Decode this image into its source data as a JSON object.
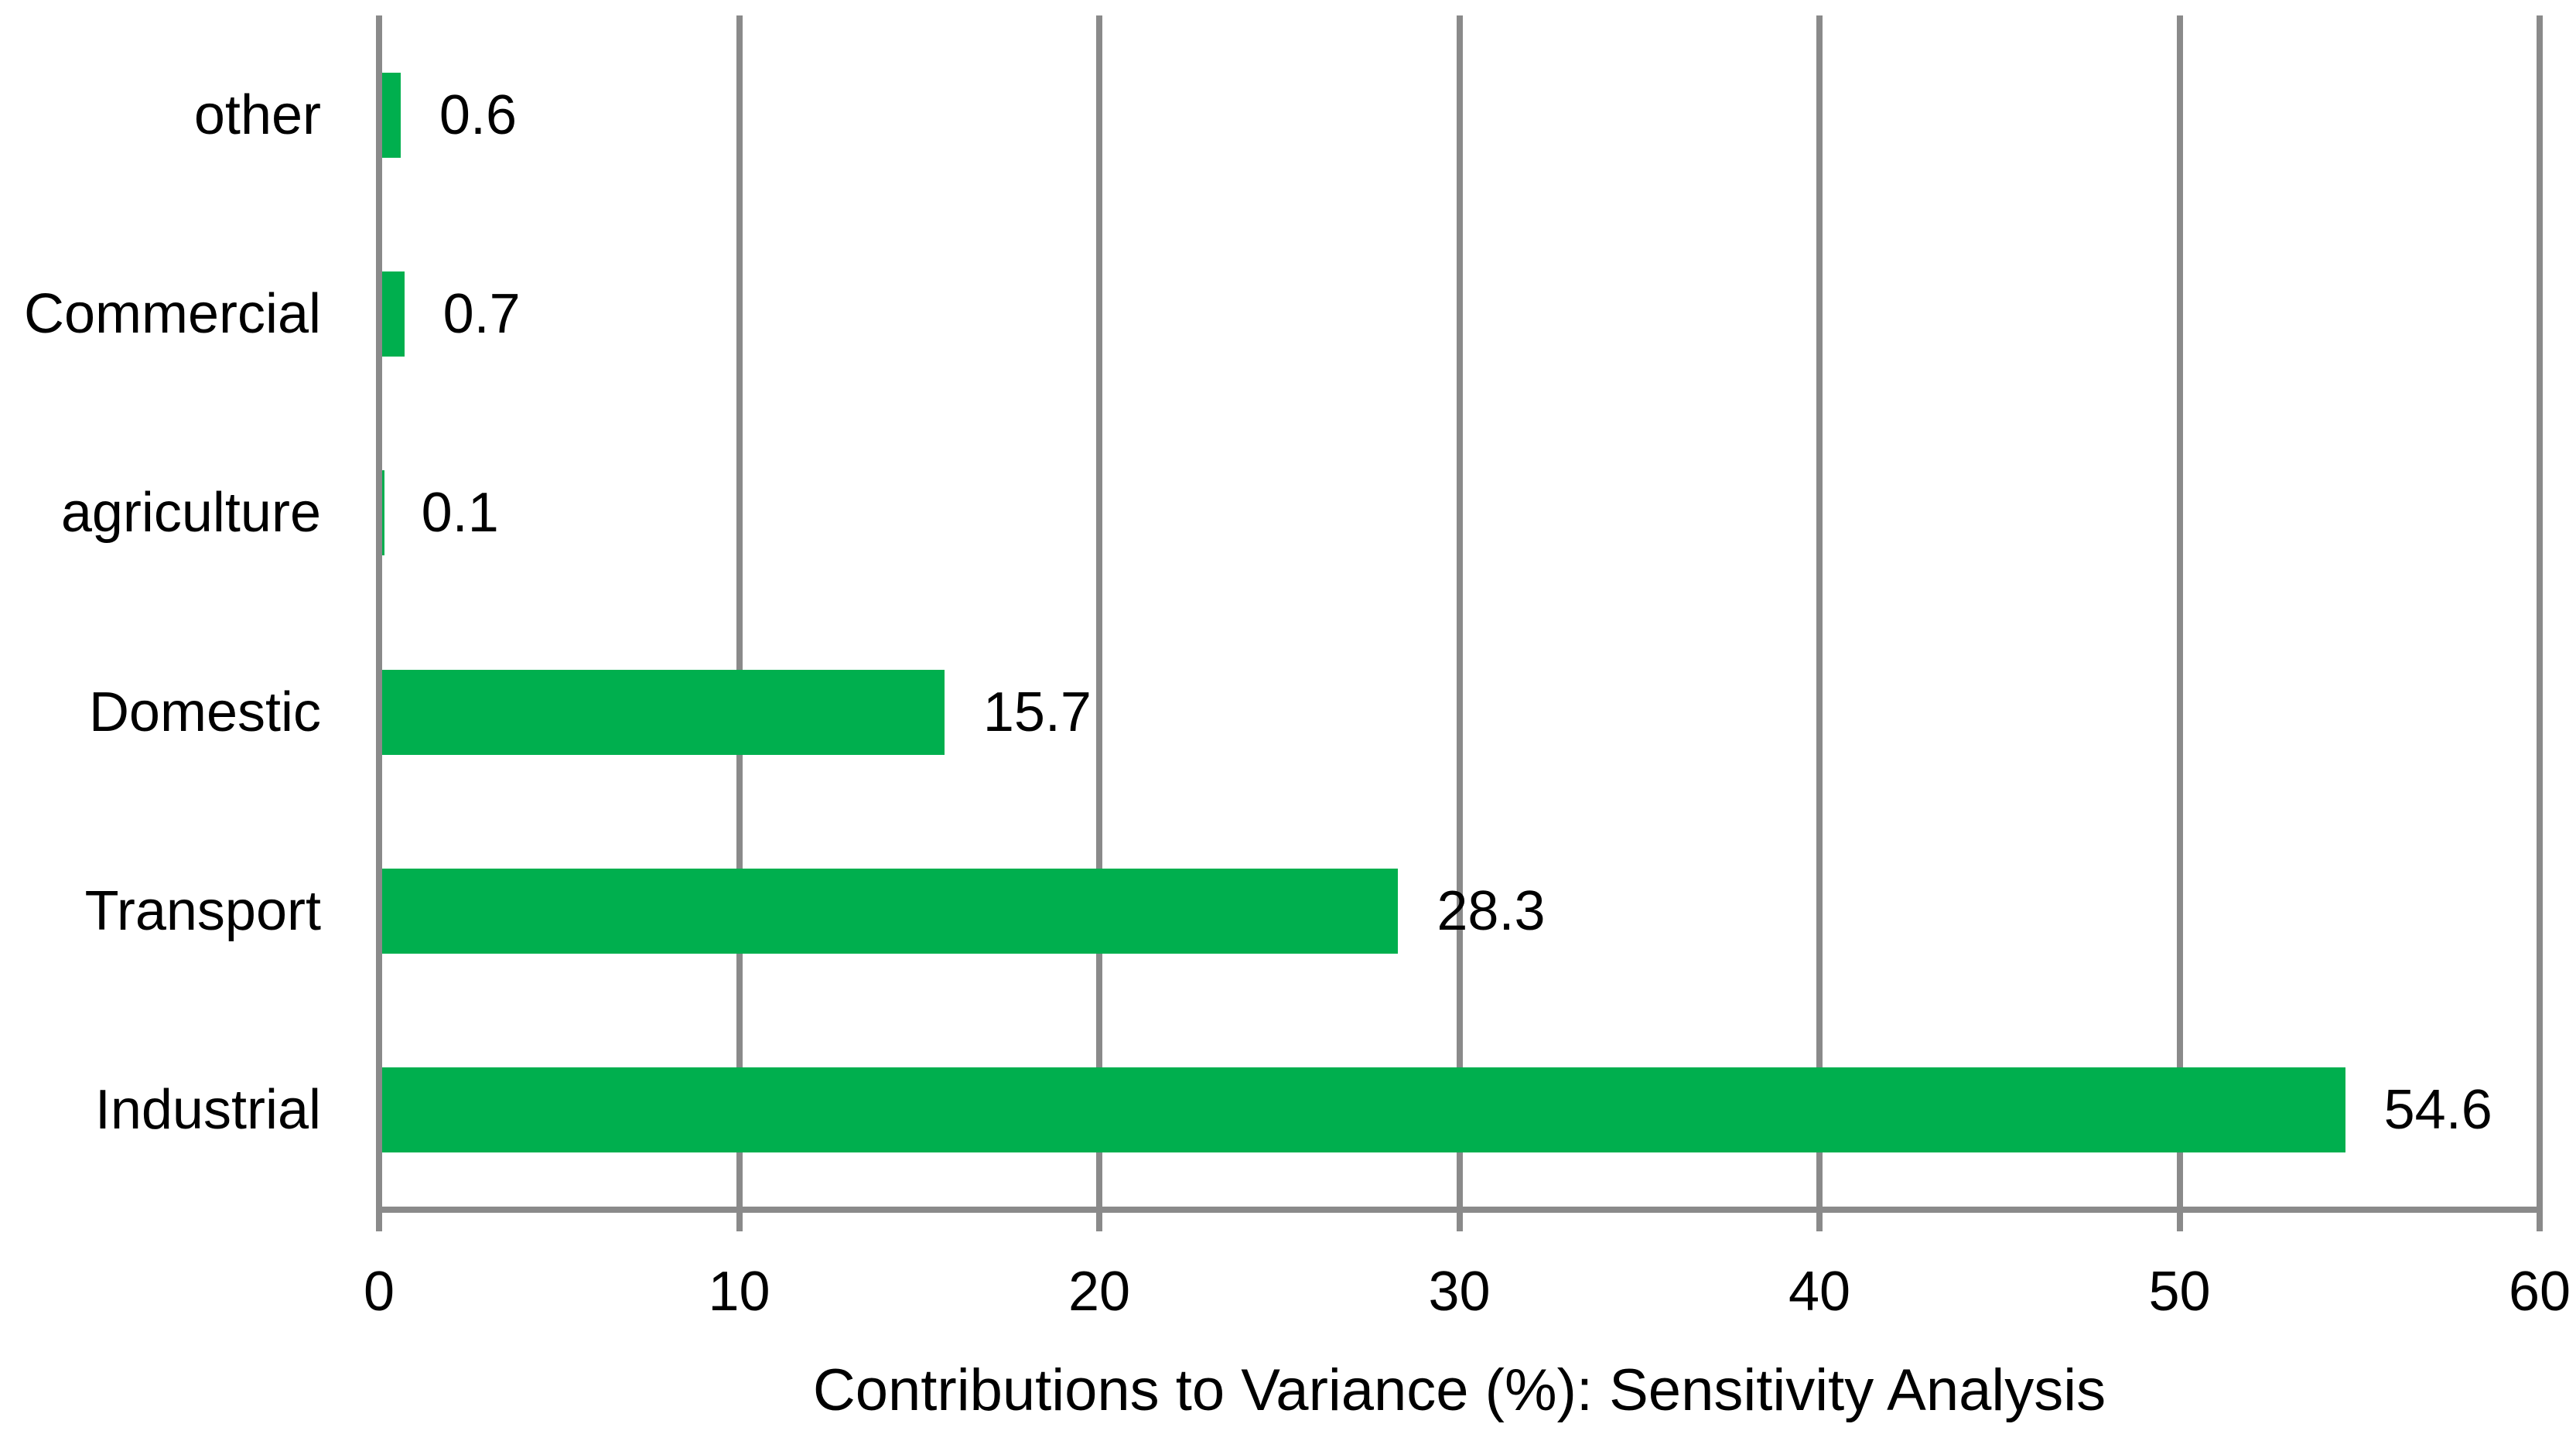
{
  "chart_data": {
    "type": "bar",
    "orientation": "horizontal",
    "categories": [
      "other",
      "Commercial",
      "agriculture",
      "Domestic",
      "Transport",
      "Industrial"
    ],
    "values": [
      0.6,
      0.7,
      0.1,
      15.7,
      28.3,
      54.6
    ],
    "value_labels": [
      "0.6",
      "0.7",
      "0.1",
      "15.7",
      "28.3",
      "54.6"
    ],
    "title": "",
    "xlabel": "Contributions to Variance (%): Sensitivity Analysis",
    "ylabel": "",
    "xlim": [
      0,
      60
    ],
    "xticks": [
      0,
      10,
      20,
      30,
      40,
      50,
      60
    ],
    "grid": "vertical-gridlines-on",
    "legend": "none",
    "bar_color": "#00AF4E",
    "axis_color": "#8A8A8A",
    "gridline_color": "#8A8A8A",
    "text_color": "#000000",
    "background_color": "#FFFFFF"
  }
}
